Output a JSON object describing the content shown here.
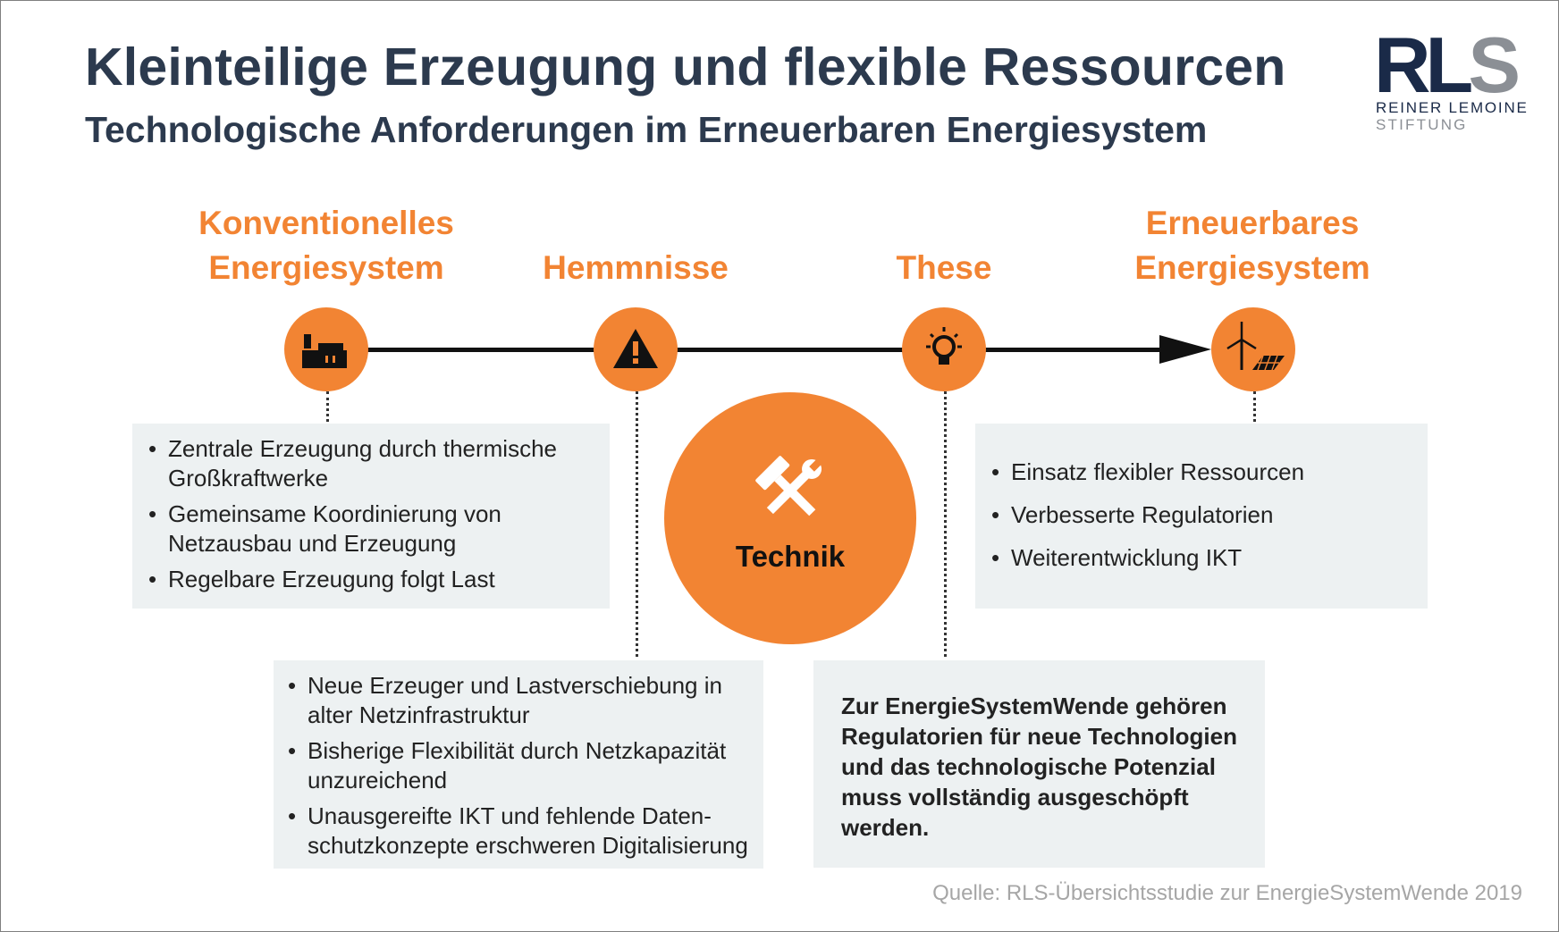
{
  "header": {
    "title": "Kleinteilige Erzeugung und flexible Ressourcen",
    "subtitle": "Technologische Anforderungen im Erneuerbaren Energiesystem"
  },
  "logo": {
    "letters_rl": "RL",
    "letters_s": "S",
    "line1": "REINER LEMOINE",
    "line2": "STIFTUNG"
  },
  "stages": {
    "conventional": {
      "line1": "Konventionelles",
      "line2": "Energiesystem",
      "icon": "factory-icon"
    },
    "obstacles": {
      "label": "Hemmnisse",
      "icon": "warning-icon"
    },
    "thesis": {
      "label": "These",
      "icon": "lightbulb-icon"
    },
    "renewable": {
      "line1": "Erneuerbares",
      "line2": "Energiesystem",
      "icon": "wind-solar-icon"
    }
  },
  "technik": {
    "label": "Technik",
    "icon": "tools-icon"
  },
  "boxes": {
    "conventional": [
      {
        "line1": "Zentrale Erzeugung durch thermische",
        "line2": "Großkraftwerke"
      },
      {
        "line1": "Gemeinsame Koordinierung von",
        "line2": "Netzausbau und Erzeugung"
      },
      {
        "line1": "Regelbare Erzeugung folgt Last",
        "line2": ""
      }
    ],
    "obstacles": [
      {
        "line1": "Neue Erzeuger und Lastverschiebung in",
        "line2": "alter Netzinfrastruktur"
      },
      {
        "line1": "Bisherige Flexibilität durch Netzkapazität",
        "line2": "unzureichend"
      },
      {
        "line1": "Unausgereifte IKT und fehlende Daten-",
        "line2": "schutzkonzepte erschweren Digitalisierung"
      }
    ],
    "renewable": [
      "Einsatz flexibler Ressourcen",
      "Verbesserte Regulatorien",
      "Weiterentwicklung IKT"
    ],
    "thesis": [
      "Zur EnergieSystemWende gehören",
      "Regulatorien für neue Technologien",
      "und das technologische Potenzial",
      "muss vollständig ausgeschöpft",
      "werden."
    ]
  },
  "bullet_char": "•",
  "source": "Quelle: RLS-Übersichtsstudie zur EnergieSystemWende 2019",
  "colors": {
    "accent": "#f28433",
    "title": "#2c3a4e",
    "box_bg": "#edf1f2"
  }
}
